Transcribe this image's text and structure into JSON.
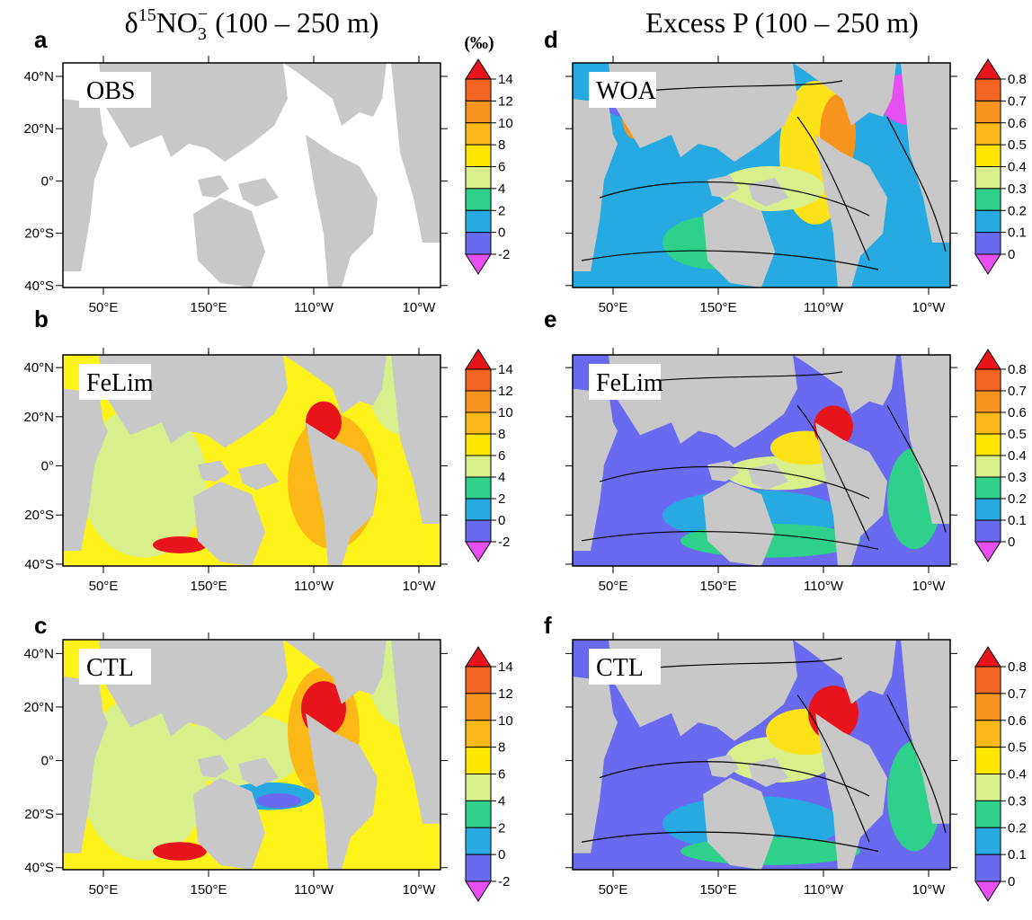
{
  "columns": [
    {
      "title": {
        "symbol": "δ",
        "isotope": "15",
        "species": "NO",
        "subscript": "3",
        "charge": "−",
        "depth": " (100 – 250 m)"
      },
      "colorbar": {
        "unit": "(‰)",
        "ticks": [
          14,
          12,
          10,
          8,
          6,
          4,
          2,
          0,
          -2
        ],
        "colors": [
          "#e8141c",
          "#f26522",
          "#f7941d",
          "#fbb817",
          "#ffe600",
          "#d9ef8b",
          "#2fd08a",
          "#27aae1",
          "#6a6af0",
          "#e64ff2"
        ]
      },
      "panels": [
        {
          "letter": "a",
          "label": "OBS"
        },
        {
          "letter": "b",
          "label": "FeLim"
        },
        {
          "letter": "c",
          "label": "CTL"
        }
      ]
    },
    {
      "title": {
        "text": "Excess P (100 – 250 m)"
      },
      "colorbar": {
        "ticks": [
          0.8,
          0.7,
          0.6,
          0.5,
          0.4,
          0.3,
          0.2,
          0.1,
          0
        ],
        "colors": [
          "#e8141c",
          "#f26522",
          "#f7941d",
          "#fbb817",
          "#ffe600",
          "#d9ef8b",
          "#2fd08a",
          "#27aae1",
          "#6a6af0",
          "#e64ff2"
        ]
      },
      "panels": [
        {
          "letter": "d",
          "label": "WOA"
        },
        {
          "letter": "e",
          "label": "FeLim"
        },
        {
          "letter": "f",
          "label": "CTL"
        }
      ]
    }
  ],
  "lat_ticks": [
    {
      "value": 40,
      "label": "40°N"
    },
    {
      "value": 20,
      "label": "20°N"
    },
    {
      "value": 0,
      "label": "0°"
    },
    {
      "value": -20,
      "label": "20°S"
    },
    {
      "value": -40,
      "label": "40°S"
    }
  ],
  "lon_ticks": [
    {
      "value": 50,
      "label": "50°E"
    },
    {
      "value": 150,
      "label": "150°E"
    },
    {
      "value": 250,
      "label": "110°W"
    },
    {
      "value": 350,
      "label": "10°W"
    }
  ]
}
